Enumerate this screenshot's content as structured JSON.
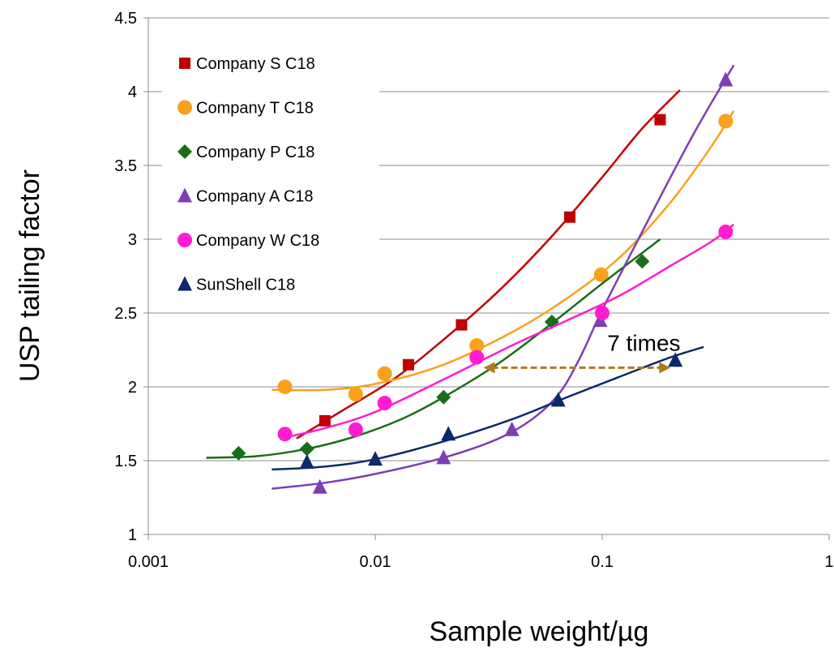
{
  "chart_data": {
    "type": "scatter",
    "xscale": "log",
    "xlabel": "Sample weight/µg",
    "ylabel": "USP tailing factor",
    "xlim": [
      0.001,
      1
    ],
    "ylim": [
      1,
      4.5
    ],
    "grid": "horizontal",
    "legend_position": "top-left",
    "x_ticks": [
      {
        "value": 0.001,
        "label": "0.001"
      },
      {
        "value": 0.01,
        "label": "0.01"
      },
      {
        "value": 0.1,
        "label": "0.1"
      },
      {
        "value": 1,
        "label": "1"
      }
    ],
    "y_ticks": [
      {
        "value": 1,
        "label": "1"
      },
      {
        "value": 1.5,
        "label": "1.5"
      },
      {
        "value": 2,
        "label": "2"
      },
      {
        "value": 2.5,
        "label": "2.5"
      },
      {
        "value": 3,
        "label": "3"
      },
      {
        "value": 3.5,
        "label": "3.5"
      },
      {
        "value": 4,
        "label": "4"
      },
      {
        "value": 4.5,
        "label": "4.5"
      }
    ],
    "series": [
      {
        "name": "Company S C18",
        "color": "#c00000",
        "marker": "square",
        "points": [
          [
            0.006,
            1.77
          ],
          [
            0.014,
            2.15
          ],
          [
            0.024,
            2.42
          ],
          [
            0.072,
            3.15
          ],
          [
            0.18,
            3.81
          ]
        ],
        "trend": [
          [
            0.0045,
            1.65
          ],
          [
            0.007,
            1.83
          ],
          [
            0.012,
            2.05
          ],
          [
            0.02,
            2.32
          ],
          [
            0.035,
            2.65
          ],
          [
            0.06,
            3.02
          ],
          [
            0.1,
            3.42
          ],
          [
            0.15,
            3.75
          ],
          [
            0.22,
            4.01
          ]
        ]
      },
      {
        "name": "Company T C18",
        "color": "#f9a11b",
        "marker": "circle",
        "points": [
          [
            0.004,
            2.0
          ],
          [
            0.0082,
            1.95
          ],
          [
            0.011,
            2.09
          ],
          [
            0.028,
            2.28
          ],
          [
            0.099,
            2.76
          ],
          [
            0.35,
            3.8
          ]
        ],
        "trend": [
          [
            0.0035,
            1.98
          ],
          [
            0.006,
            1.98
          ],
          [
            0.01,
            2.02
          ],
          [
            0.02,
            2.15
          ],
          [
            0.04,
            2.37
          ],
          [
            0.07,
            2.6
          ],
          [
            0.12,
            2.88
          ],
          [
            0.2,
            3.25
          ],
          [
            0.3,
            3.62
          ],
          [
            0.38,
            3.87
          ]
        ]
      },
      {
        "name": "Company P C18",
        "color": "#1a6e1a",
        "marker": "diamond",
        "points": [
          [
            0.0025,
            1.55
          ],
          [
            0.005,
            1.58
          ],
          [
            0.02,
            1.93
          ],
          [
            0.06,
            2.44
          ],
          [
            0.15,
            2.85
          ]
        ],
        "trend": [
          [
            0.0018,
            1.52
          ],
          [
            0.003,
            1.53
          ],
          [
            0.005,
            1.58
          ],
          [
            0.008,
            1.66
          ],
          [
            0.013,
            1.78
          ],
          [
            0.02,
            1.93
          ],
          [
            0.035,
            2.16
          ],
          [
            0.06,
            2.43
          ],
          [
            0.1,
            2.7
          ],
          [
            0.18,
            3.0
          ]
        ]
      },
      {
        "name": "Company A C18",
        "color": "#7f3fb4",
        "marker": "triangle",
        "points": [
          [
            0.0057,
            1.32
          ],
          [
            0.02,
            1.52
          ],
          [
            0.04,
            1.71
          ],
          [
            0.098,
            2.45
          ],
          [
            0.35,
            4.08
          ]
        ],
        "trend": [
          [
            0.0035,
            1.31
          ],
          [
            0.006,
            1.35
          ],
          [
            0.01,
            1.41
          ],
          [
            0.02,
            1.52
          ],
          [
            0.035,
            1.65
          ],
          [
            0.05,
            1.79
          ],
          [
            0.065,
            1.96
          ],
          [
            0.08,
            2.2
          ],
          [
            0.1,
            2.52
          ],
          [
            0.15,
            3.05
          ],
          [
            0.25,
            3.7
          ],
          [
            0.38,
            4.18
          ]
        ]
      },
      {
        "name": "Company W C18",
        "color": "#ff1cd1",
        "marker": "circle",
        "points": [
          [
            0.004,
            1.68
          ],
          [
            0.0082,
            1.71
          ],
          [
            0.011,
            1.89
          ],
          [
            0.028,
            2.2
          ],
          [
            0.1,
            2.5
          ],
          [
            0.35,
            3.05
          ]
        ],
        "trend": [
          [
            0.0038,
            1.65
          ],
          [
            0.006,
            1.72
          ],
          [
            0.01,
            1.83
          ],
          [
            0.02,
            2.05
          ],
          [
            0.04,
            2.28
          ],
          [
            0.07,
            2.45
          ],
          [
            0.12,
            2.62
          ],
          [
            0.2,
            2.82
          ],
          [
            0.3,
            2.98
          ],
          [
            0.38,
            3.1
          ]
        ]
      },
      {
        "name": "SunShell C18",
        "color": "#0c2a6b",
        "marker": "triangle",
        "points": [
          [
            0.005,
            1.49
          ],
          [
            0.01,
            1.51
          ],
          [
            0.021,
            1.68
          ],
          [
            0.064,
            1.91
          ],
          [
            0.21,
            2.18
          ]
        ],
        "trend": [
          [
            0.0035,
            1.44
          ],
          [
            0.006,
            1.46
          ],
          [
            0.01,
            1.51
          ],
          [
            0.02,
            1.63
          ],
          [
            0.04,
            1.78
          ],
          [
            0.07,
            1.93
          ],
          [
            0.12,
            2.07
          ],
          [
            0.2,
            2.2
          ],
          [
            0.28,
            2.27
          ]
        ]
      }
    ],
    "annotation": {
      "text": "7 times",
      "arrow_from": [
        0.03,
        2.13
      ],
      "arrow_to": [
        0.2,
        2.13
      ],
      "arrow_color": "#b07a1e",
      "text_at": [
        0.097,
        2.3
      ]
    }
  }
}
